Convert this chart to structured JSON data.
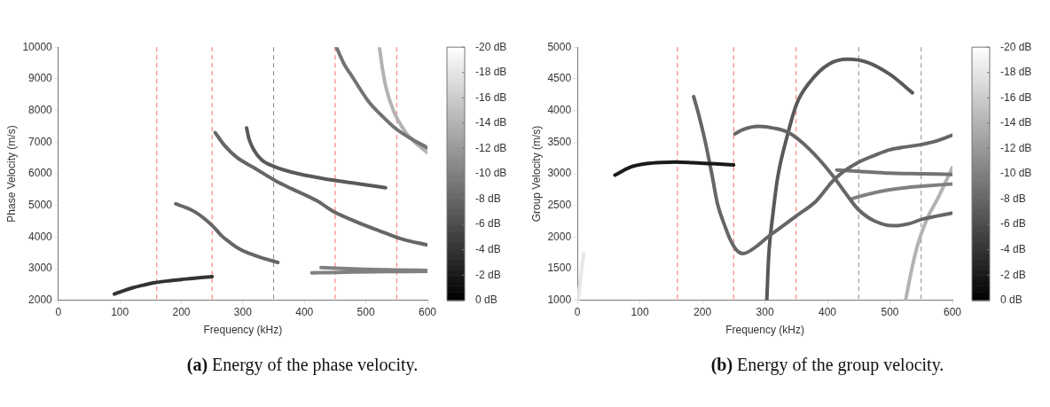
{
  "chart_data": [
    {
      "type": "line",
      "title": "(a) Energy of the phase velocity.",
      "xlabel": "Frequency (kHz)",
      "ylabel": "Phase Velocity (m/s)",
      "xlim": [
        0,
        600
      ],
      "xticks": [
        0,
        100,
        200,
        300,
        400,
        500,
        600
      ],
      "ylim": [
        2000,
        10000
      ],
      "yticks": [
        2000,
        3000,
        4000,
        5000,
        6000,
        7000,
        8000,
        9000,
        10000
      ],
      "clim": [
        0,
        -20
      ],
      "cticks": [
        {
          "value": 0,
          "label": "0 dB"
        },
        {
          "value": -2,
          "label": "-2 dB"
        },
        {
          "value": -4,
          "label": "-4 dB"
        },
        {
          "value": -6,
          "label": "-6 dB"
        },
        {
          "value": -8,
          "label": "-8 dB"
        },
        {
          "value": -10,
          "label": "-10 dB"
        },
        {
          "value": -12,
          "label": "-12 dB"
        },
        {
          "value": -14,
          "label": "-14 dB"
        },
        {
          "value": -16,
          "label": "-16 dB"
        },
        {
          "value": -18,
          "label": "-18 dB"
        },
        {
          "value": -20,
          "label": "-20 dB"
        }
      ],
      "line_style": "solid",
      "ref_lines": [
        {
          "axis": "x",
          "value": 160,
          "color": "#ff6666",
          "line_style": "dashed"
        },
        {
          "axis": "x",
          "value": 250,
          "color": "#ff6666",
          "line_style": "dashed"
        },
        {
          "axis": "x",
          "value": 350,
          "color": "#888888",
          "line_style": "dashed"
        },
        {
          "axis": "x",
          "value": 450,
          "color": "#ff6666",
          "line_style": "dashed"
        },
        {
          "axis": "x",
          "value": 550,
          "color": "#ff6666",
          "line_style": "dashed"
        }
      ],
      "series": [
        {
          "color": "#333333",
          "x": [
            91,
            105,
            121,
            140,
            157,
            180,
            200,
            225,
            250
          ],
          "values": [
            2200,
            2300,
            2400,
            2490,
            2560,
            2620,
            2660,
            2710,
            2750
          ]
        },
        {
          "color": "#666666",
          "x": [
            191,
            205,
            220,
            235,
            252,
            265,
            281,
            295,
            311,
            330,
            357
          ],
          "values": [
            5050,
            4950,
            4820,
            4620,
            4330,
            4050,
            3800,
            3620,
            3480,
            3350,
            3200
          ]
        },
        {
          "color": "#666666",
          "x": [
            255,
            270,
            290,
            320,
            352,
            380,
            420,
            450,
            480,
            505,
            530,
            560,
            600
          ],
          "values": [
            7300,
            6900,
            6520,
            6170,
            5790,
            5520,
            5150,
            4780,
            4520,
            4320,
            4140,
            3930,
            3750
          ]
        },
        {
          "color": "#595959",
          "x": [
            306,
            310,
            318,
            330,
            352,
            380,
            400,
            450,
            490,
            532
          ],
          "values": [
            7450,
            7100,
            6750,
            6450,
            6220,
            6050,
            5960,
            5790,
            5680,
            5560
          ]
        },
        {
          "color": "#737373",
          "x": [
            452,
            465,
            478,
            504,
            525,
            547,
            570,
            600
          ],
          "values": [
            10000,
            9450,
            9060,
            8290,
            7850,
            7450,
            7150,
            6820
          ]
        },
        {
          "color": "#b3b3b3",
          "x": [
            522,
            527,
            533,
            545,
            565,
            585,
            600
          ],
          "values": [
            10000,
            9300,
            8700,
            7980,
            7300,
            6900,
            6670
          ]
        },
        {
          "color": "#808080",
          "x": [
            427,
            460,
            500,
            550,
            600
          ],
          "values": [
            3040,
            3010,
            2980,
            2960,
            2950
          ]
        },
        {
          "color": "#808080",
          "x": [
            412,
            440,
            480,
            540,
            600
          ],
          "values": [
            2870,
            2880,
            2895,
            2910,
            2920
          ]
        }
      ]
    },
    {
      "type": "line",
      "title": "(b) Energy of the group velocity.",
      "xlabel": "Frequency (kHz)",
      "ylabel": "Group Velocity (m/s)",
      "xlim": [
        0,
        600
      ],
      "xticks": [
        0,
        100,
        200,
        300,
        400,
        500,
        600
      ],
      "ylim": [
        1000,
        5000
      ],
      "yticks": [
        1000,
        1500,
        2000,
        2500,
        3000,
        3500,
        4000,
        4500,
        5000
      ],
      "clim": [
        0,
        -20
      ],
      "cticks": [
        {
          "value": 0,
          "label": "0 dB"
        },
        {
          "value": -2,
          "label": "-2 dB"
        },
        {
          "value": -4,
          "label": "-4 dB"
        },
        {
          "value": -6,
          "label": "-6 dB"
        },
        {
          "value": -8,
          "label": "-8 dB"
        },
        {
          "value": -10,
          "label": "-10 dB"
        },
        {
          "value": -12,
          "label": "-12 dB"
        },
        {
          "value": -14,
          "label": "-14 dB"
        },
        {
          "value": -16,
          "label": "-16 dB"
        },
        {
          "value": -18,
          "label": "-18 dB"
        },
        {
          "value": -20,
          "label": "-20 dB"
        }
      ],
      "line_style": "solid",
      "ref_lines": [
        {
          "axis": "x",
          "value": 160,
          "color": "#ff6666",
          "line_style": "dashed"
        },
        {
          "axis": "x",
          "value": 250,
          "color": "#ff6666",
          "line_style": "dashed"
        },
        {
          "axis": "x",
          "value": 350,
          "color": "#ff6666",
          "line_style": "dashed"
        },
        {
          "axis": "x",
          "value": 450,
          "color": "#888888",
          "line_style": "dashed"
        },
        {
          "axis": "x",
          "value": 550,
          "color": "#888888",
          "line_style": "dashed"
        }
      ],
      "series": [
        {
          "color": "#1a1a1a",
          "x": [
            60,
            86,
            110,
            135,
            157,
            185,
            215,
            250
          ],
          "values": [
            2980,
            3110,
            3160,
            3180,
            3185,
            3175,
            3160,
            3140
          ]
        },
        {
          "color": "#e6e6e6",
          "x": [
            1,
            5,
            10
          ],
          "values": [
            1000,
            1350,
            1740
          ]
        },
        {
          "color": "#666666",
          "x": [
            186,
            195,
            204,
            215,
            224,
            235,
            245,
            255,
            265,
            286,
            308,
            325,
            351,
            382,
            408,
            425,
            449,
            475,
            500,
            549,
            575,
            600
          ],
          "values": [
            4220,
            3900,
            3530,
            3000,
            2530,
            2200,
            1950,
            1790,
            1740,
            1850,
            2030,
            2150,
            2340,
            2570,
            2880,
            3030,
            3180,
            3290,
            3380,
            3460,
            3520,
            3610
          ]
        },
        {
          "color": "#666666",
          "x": [
            252,
            265,
            290,
            315,
            338,
            372,
            407,
            430,
            448,
            474,
            505,
            530,
            551,
            600
          ],
          "values": [
            3630,
            3700,
            3750,
            3720,
            3650,
            3380,
            2990,
            2680,
            2450,
            2260,
            2180,
            2210,
            2280,
            2380
          ]
        },
        {
          "color": "#595959",
          "x": [
            303,
            305,
            307,
            312,
            320,
            336,
            351,
            372,
            402,
            433,
            464,
            500,
            536
          ],
          "values": [
            1000,
            1500,
            1840,
            2300,
            2920,
            3610,
            4110,
            4450,
            4730,
            4810,
            4760,
            4570,
            4280
          ]
        },
        {
          "color": "#737373",
          "x": [
            415,
            450,
            500,
            550,
            600
          ],
          "values": [
            3060,
            3040,
            3010,
            3000,
            2990
          ]
        },
        {
          "color": "#808080",
          "x": [
            440,
            474,
            525,
            560,
            600
          ],
          "values": [
            2610,
            2700,
            2780,
            2810,
            2840
          ]
        },
        {
          "color": "#b3b3b3",
          "x": [
            525,
            535,
            545,
            560,
            577,
            600
          ],
          "values": [
            1000,
            1500,
            1900,
            2300,
            2620,
            3100
          ]
        }
      ]
    }
  ]
}
